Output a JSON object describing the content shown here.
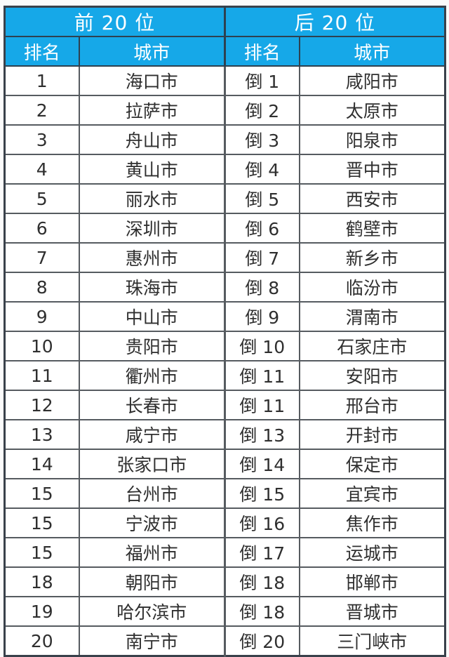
{
  "colors": {
    "header_blue": "#16a8e8",
    "header_text": "#ffffff",
    "body_text": "#2f2f2f",
    "grid_border": "#4d5359",
    "outer_border": "#39414b"
  },
  "chart_data": {
    "type": "table",
    "groups": [
      {
        "header": "前 20 位",
        "columns": [
          "排名",
          "城市"
        ],
        "rows": [
          [
            "1",
            "海口市"
          ],
          [
            "2",
            "拉萨市"
          ],
          [
            "3",
            "舟山市"
          ],
          [
            "4",
            "黄山市"
          ],
          [
            "5",
            "丽水市"
          ],
          [
            "6",
            "深圳市"
          ],
          [
            "7",
            "惠州市"
          ],
          [
            "8",
            "珠海市"
          ],
          [
            "9",
            "中山市"
          ],
          [
            "10",
            "贵阳市"
          ],
          [
            "11",
            "衢州市"
          ],
          [
            "12",
            "长春市"
          ],
          [
            "13",
            "咸宁市"
          ],
          [
            "14",
            "张家口市"
          ],
          [
            "15",
            "台州市"
          ],
          [
            "15",
            "宁波市"
          ],
          [
            "15",
            "福州市"
          ],
          [
            "18",
            "朝阳市"
          ],
          [
            "19",
            "哈尔滨市"
          ],
          [
            "20",
            "南宁市"
          ]
        ]
      },
      {
        "header": "后 20 位",
        "columns": [
          "排名",
          "城市"
        ],
        "rows": [
          [
            "倒 1",
            "咸阳市"
          ],
          [
            "倒 2",
            "太原市"
          ],
          [
            "倒 3",
            "阳泉市"
          ],
          [
            "倒 4",
            "晋中市"
          ],
          [
            "倒 5",
            "西安市"
          ],
          [
            "倒 6",
            "鹤壁市"
          ],
          [
            "倒 7",
            "新乡市"
          ],
          [
            "倒 8",
            "临汾市"
          ],
          [
            "倒 9",
            "渭南市"
          ],
          [
            "倒 10",
            "石家庄市"
          ],
          [
            "倒 11",
            "安阳市"
          ],
          [
            "倒 11",
            "邢台市"
          ],
          [
            "倒 13",
            "开封市"
          ],
          [
            "倒 14",
            "保定市"
          ],
          [
            "倒 15",
            "宜宾市"
          ],
          [
            "倒 16",
            "焦作市"
          ],
          [
            "倒 17",
            "运城市"
          ],
          [
            "倒 18",
            "邯郸市"
          ],
          [
            "倒 18",
            "晋城市"
          ],
          [
            "倒 20",
            "三门峡市"
          ]
        ]
      }
    ]
  }
}
